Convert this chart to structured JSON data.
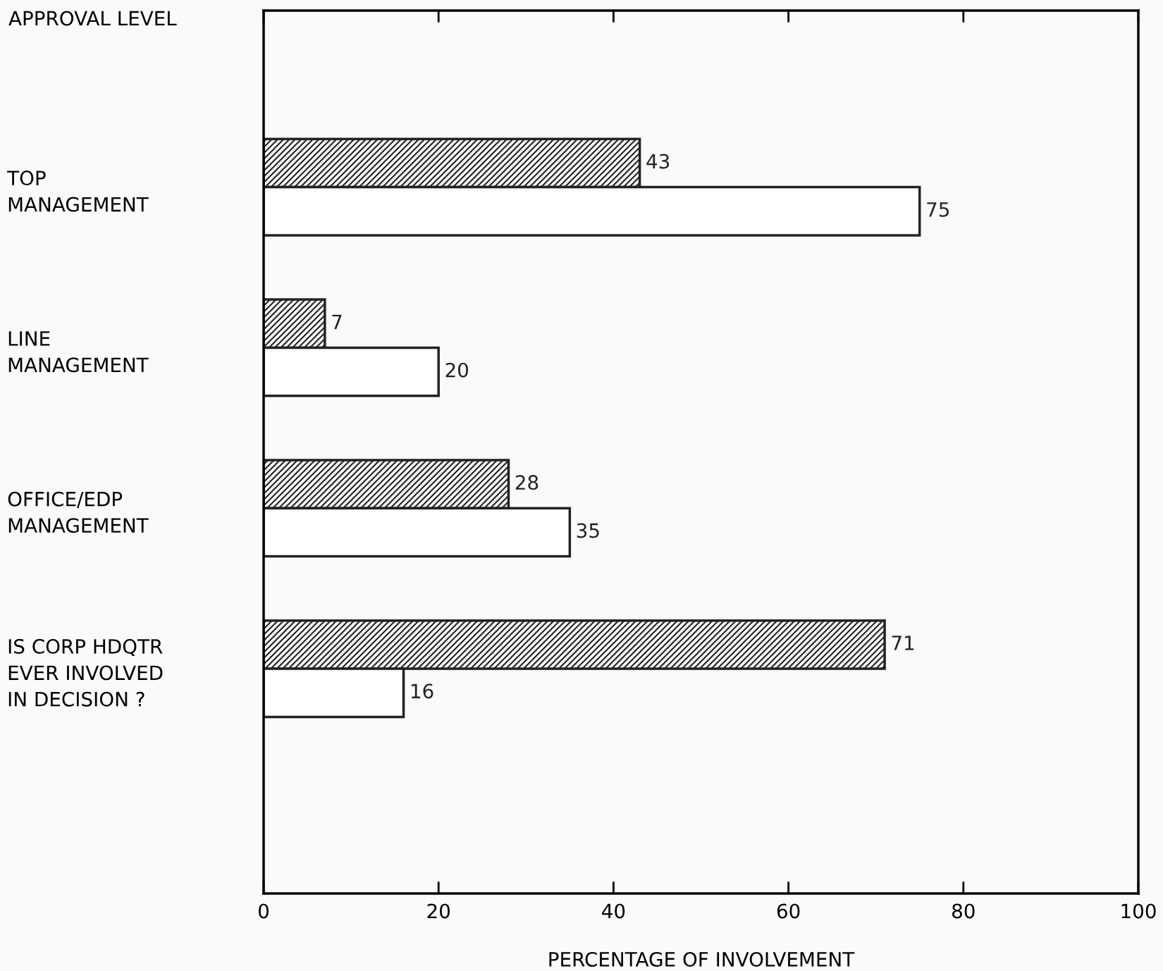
{
  "chart_data": {
    "type": "bar",
    "orientation": "horizontal",
    "ylabel": "APPROVAL LEVEL",
    "xlabel": "PERCENTAGE OF INVOLVEMENT",
    "categories": [
      "TOP\nMANAGEMENT",
      "LINE\nMANAGEMENT",
      "OFFICE/EDP\nMANAGEMENT",
      "IS CORP HDQTR\nEVER INVOLVED\nIN DECISION ?"
    ],
    "series": [
      {
        "color": "#222222",
        "values": [
          43,
          7,
          28,
          71
        ]
      },
      {
        "color": "#ffffff",
        "values": [
          75,
          20,
          35,
          16
        ]
      }
    ],
    "xlim": [
      0,
      100
    ],
    "xticks": [
      0,
      20,
      40,
      60,
      80,
      100
    ],
    "data_labels": true,
    "grid": false,
    "legend": false
  }
}
